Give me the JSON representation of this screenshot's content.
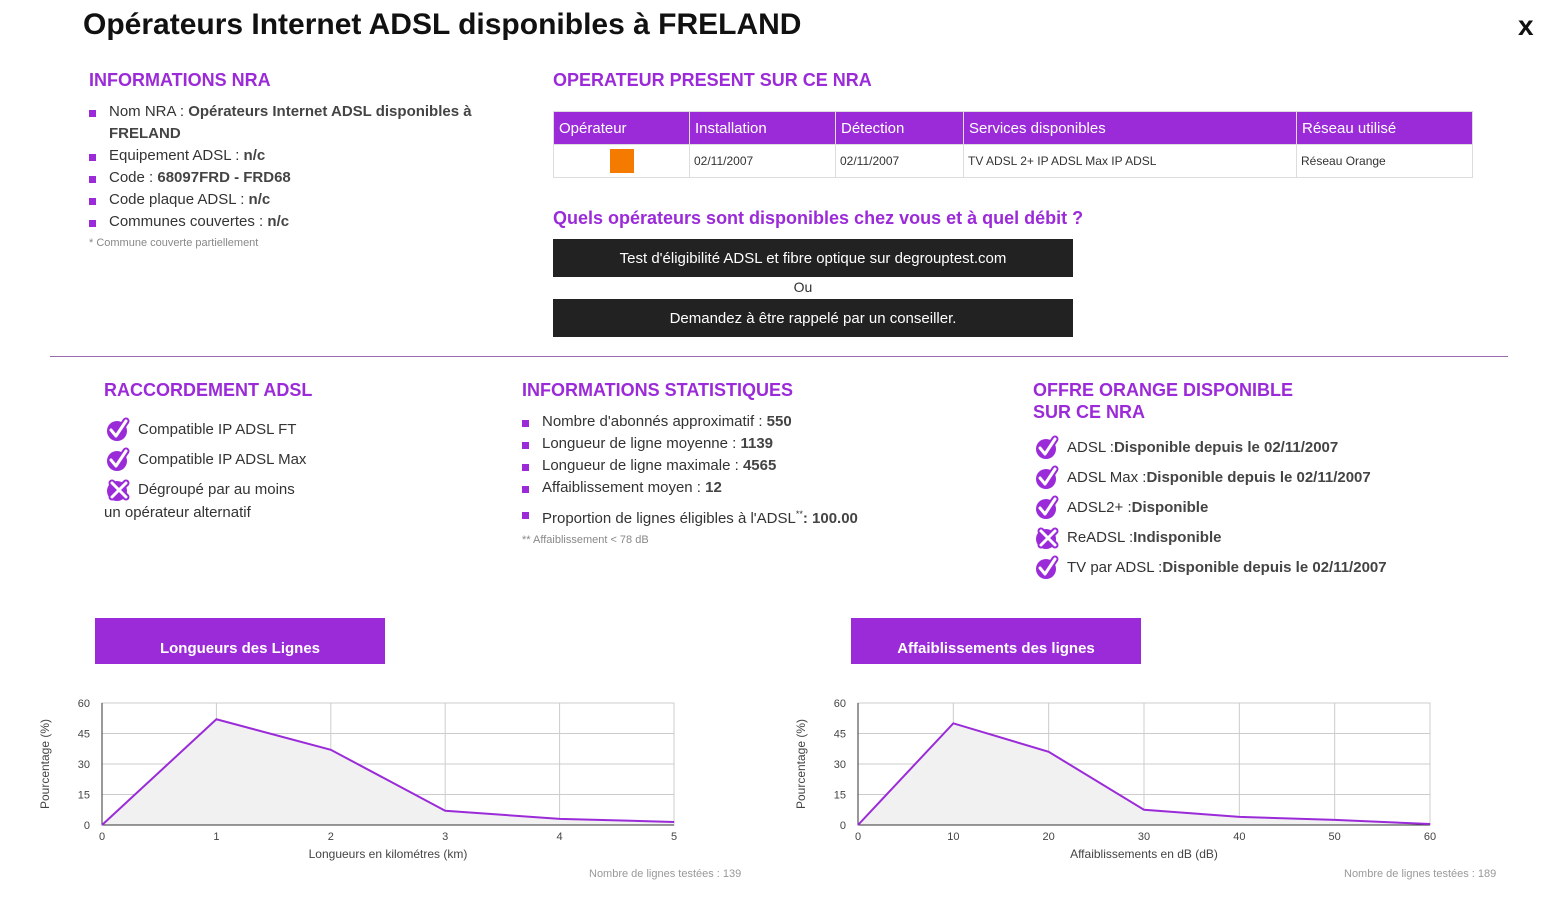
{
  "title": "Opérateurs Internet ADSL disponibles à FRELAND",
  "close_label": "x",
  "nra": {
    "heading": "INFORMATIONS NRA",
    "items": [
      {
        "label": "Nom NRA : ",
        "value": "Opérateurs Internet ADSL disponibles à FRELAND"
      },
      {
        "label": "Equipement ADSL : ",
        "value": "n/c"
      },
      {
        "label": "Code : ",
        "value": "68097FRD - FRD68"
      },
      {
        "label": "Code plaque ADSL : ",
        "value": "n/c"
      },
      {
        "label": "Communes couvertes : ",
        "value": "n/c"
      }
    ],
    "note": "* Commune couverte partiellement"
  },
  "operateur": {
    "heading": "OPERATEUR PRESENT SUR CE NRA",
    "columns": [
      "Opérateur",
      "Installation",
      "Détection",
      "Services disponibles",
      "Réseau utilisé"
    ],
    "rows": [
      {
        "logo": "orange",
        "installation": "02/11/2007",
        "detection": "02/11/2007",
        "services": "TV ADSL 2+ IP ADSL Max IP ADSL",
        "reseau": "Réseau Orange"
      }
    ]
  },
  "eligibility": {
    "heading": "Quels opérateurs sont disponibles chez vous et à quel débit ?",
    "test_button": "Test d'éligibilité ADSL et fibre optique sur degrouptest.com",
    "or": "Ou",
    "callback_button": "Demandez à être rappelé par un conseiller."
  },
  "raccordement": {
    "heading": "RACCORDEMENT ADSL",
    "items": [
      {
        "label": "Compatible IP ADSL FT",
        "ok": true
      },
      {
        "label": "Compatible IP ADSL Max",
        "ok": true
      },
      {
        "label": "Dégroupé par au moins",
        "ok": false
      }
    ],
    "extra": "un opérateur alternatif"
  },
  "stats": {
    "heading": "INFORMATIONS STATISTIQUES",
    "items": [
      {
        "label": "Nombre d'abonnés approximatif : ",
        "value": "550"
      },
      {
        "label": "Longueur de ligne moyenne : ",
        "value": "1139"
      },
      {
        "label": "Longueur de ligne maximale : ",
        "value": "4565"
      },
      {
        "label": "Affaiblissement moyen : ",
        "value": "12"
      }
    ],
    "proportion_label": "Proportion de lignes éligibles à l'ADSL",
    "proportion_sup": "**",
    "proportion_value": ": 100.00",
    "note": "** Affaiblissement < 78 dB"
  },
  "offre": {
    "heading1": "OFFRE ORANGE DISPONIBLE",
    "heading2": "SUR CE NRA",
    "items": [
      {
        "label": "ADSL : ",
        "value": "Disponible depuis le 02/11/2007",
        "ok": true
      },
      {
        "label": "ADSL Max : ",
        "value": "Disponible depuis le 02/11/2007",
        "ok": true
      },
      {
        "label": "ADSL2+ : ",
        "value": "Disponible",
        "ok": true
      },
      {
        "label": "ReADSL : ",
        "value": "Indisponible",
        "ok": false
      },
      {
        "label": "TV par ADSL : ",
        "value": "Disponible depuis le 02/11/2007",
        "ok": true
      }
    ]
  },
  "colors": {
    "accent": "#9b2bd8",
    "orange": "#f47a00"
  },
  "chart_data": [
    {
      "type": "area",
      "title": "Longueurs des Lignes",
      "xlabel": "Longueurs en kilométres (km)",
      "ylabel": "Pourcentage (%)",
      "x": [
        0,
        1,
        2,
        3,
        4,
        5
      ],
      "values": [
        0,
        52,
        37,
        7,
        3,
        1.5
      ],
      "xlim": [
        0,
        5
      ],
      "ylim": [
        0,
        60
      ],
      "xticks": [
        "0",
        "1",
        "2",
        "3",
        "4",
        "5"
      ],
      "yticks": [
        "0",
        "15",
        "30",
        "45",
        "60"
      ],
      "grid": true,
      "footer": "Nombre de lignes testées : 139"
    },
    {
      "type": "area",
      "title": "Affaiblissements des lignes",
      "xlabel": "Affaiblissements en dB (dB)",
      "ylabel": "Pourcentage (%)",
      "x": [
        0,
        10,
        20,
        30,
        40,
        50,
        60
      ],
      "values": [
        0,
        50,
        36,
        7.5,
        4,
        2.5,
        0.5
      ],
      "xlim": [
        0,
        60
      ],
      "ylim": [
        0,
        60
      ],
      "xticks": [
        "0",
        "10",
        "20",
        "30",
        "40",
        "50",
        "60"
      ],
      "yticks": [
        "0",
        "15",
        "30",
        "45",
        "60"
      ],
      "grid": true,
      "footer": "Nombre de lignes testées : 189"
    }
  ]
}
